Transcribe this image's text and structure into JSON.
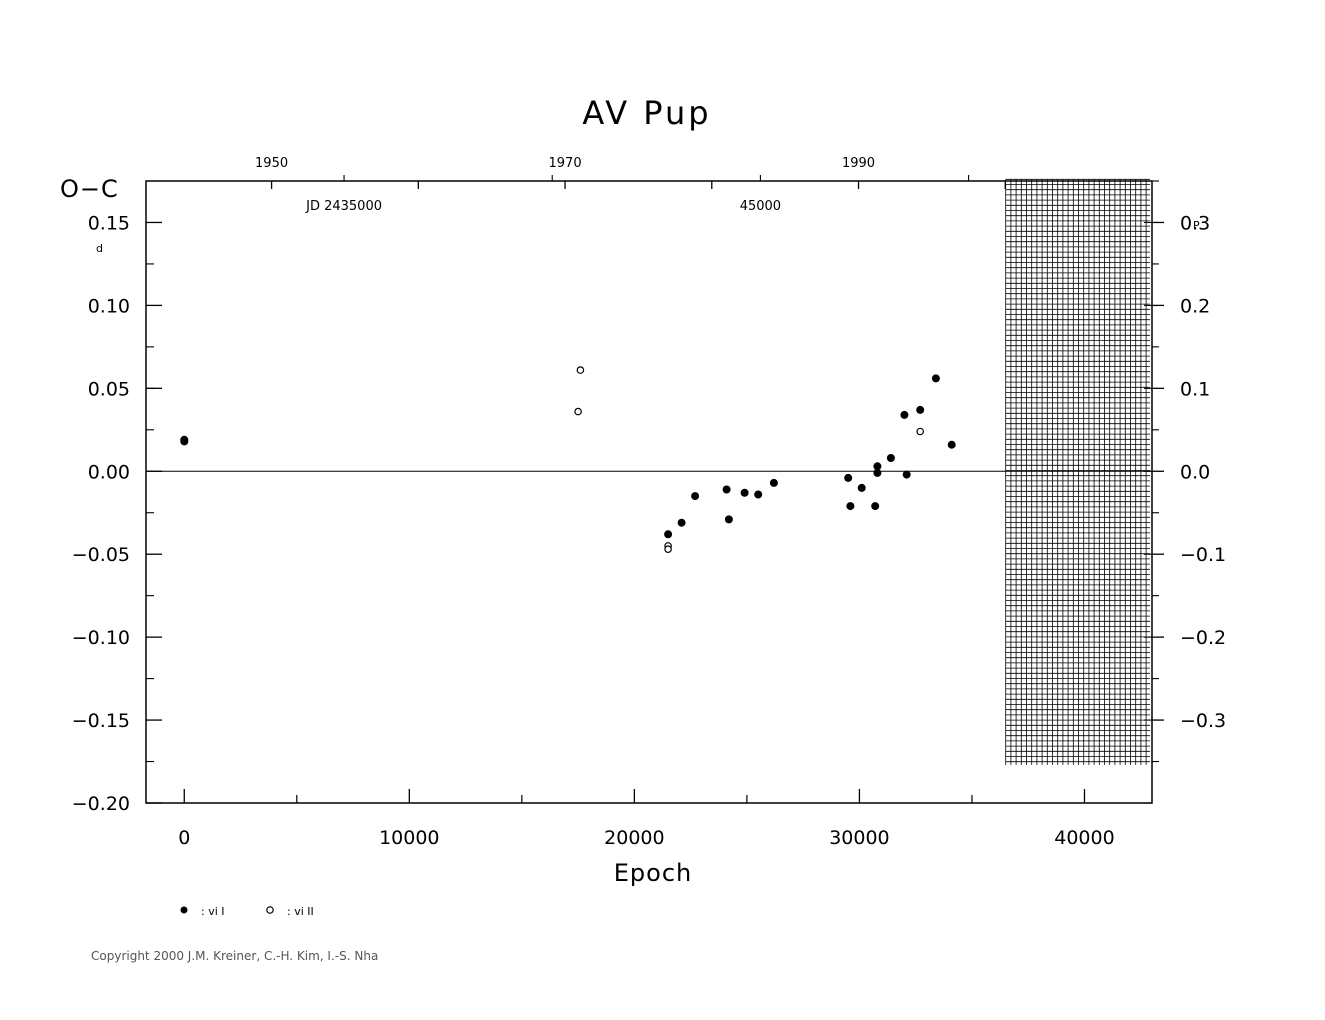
{
  "chart_data": {
    "type": "scatter",
    "title": "AV  Pup",
    "ylabel": "O−C",
    "xlabel": "Epoch",
    "xlim": [
      -1700,
      43000
    ],
    "ylim": [
      -0.2,
      0.175
    ],
    "x_ticks": [
      0,
      10000,
      20000,
      30000,
      40000
    ],
    "x_tick_labels": [
      "0",
      "10000",
      "20000",
      "30000",
      "40000"
    ],
    "y_ticks": [
      0.15,
      0.1,
      0.05,
      0.0,
      -0.05,
      -0.1,
      -0.15,
      -0.2
    ],
    "y_tick_labels": [
      "0.15",
      "0.10",
      "0.05",
      "0.00",
      "−0.05",
      "−0.10",
      "−0.15",
      "−0.20"
    ],
    "y_unit": "d",
    "right_axis": {
      "ticks": [
        0.3,
        0.2,
        0.1,
        0.0,
        -0.1,
        -0.2,
        -0.3
      ],
      "tick_labels": [
        "0.3",
        "0.2",
        "0.1",
        "0.0",
        "−0.1",
        "−0.2",
        "−0.3"
      ],
      "unit": "P",
      "period_days": 0.5
    },
    "top_axis": {
      "year_labels": [
        {
          "epoch": 3880,
          "label": "1950"
        },
        {
          "epoch": 16920,
          "label": "1970"
        },
        {
          "epoch": 29960,
          "label": "1990"
        }
      ],
      "jd_labels": [
        {
          "epoch": 7100,
          "label": "JD  2435000"
        },
        {
          "epoch": 25600,
          "label": "45000"
        }
      ]
    },
    "shaded_region": {
      "x_from": 36500,
      "x_to": 43000,
      "y_from": -0.177,
      "y_to": 0.176
    },
    "series": [
      {
        "name": ": vi I",
        "marker": "filled",
        "points": [
          [
            0,
            0.019
          ],
          [
            0,
            0.018
          ],
          [
            21500,
            -0.038
          ],
          [
            22100,
            -0.031
          ],
          [
            22700,
            -0.015
          ],
          [
            24100,
            -0.011
          ],
          [
            24200,
            -0.029
          ],
          [
            24900,
            -0.013
          ],
          [
            25500,
            -0.014
          ],
          [
            26200,
            -0.007
          ],
          [
            29500,
            -0.004
          ],
          [
            29600,
            -0.021
          ],
          [
            30100,
            -0.01
          ],
          [
            30700,
            -0.021
          ],
          [
            30800,
            -0.001
          ],
          [
            30800,
            0.003
          ],
          [
            31400,
            0.008
          ],
          [
            32000,
            0.034
          ],
          [
            32100,
            -0.002
          ],
          [
            32700,
            0.037
          ],
          [
            33400,
            0.056
          ],
          [
            34100,
            0.016
          ]
        ]
      },
      {
        "name": ": vi II",
        "marker": "open",
        "points": [
          [
            17500,
            0.036
          ],
          [
            17600,
            0.061
          ],
          [
            21500,
            -0.045
          ],
          [
            21500,
            -0.047
          ],
          [
            32700,
            0.024
          ]
        ]
      }
    ]
  },
  "legend": {
    "filled_label": ": vi I",
    "open_label": ": vi II"
  },
  "copyright": "Copyright 2000 J.M. Kreiner, C.-H. Kim, I.-S. Nha"
}
